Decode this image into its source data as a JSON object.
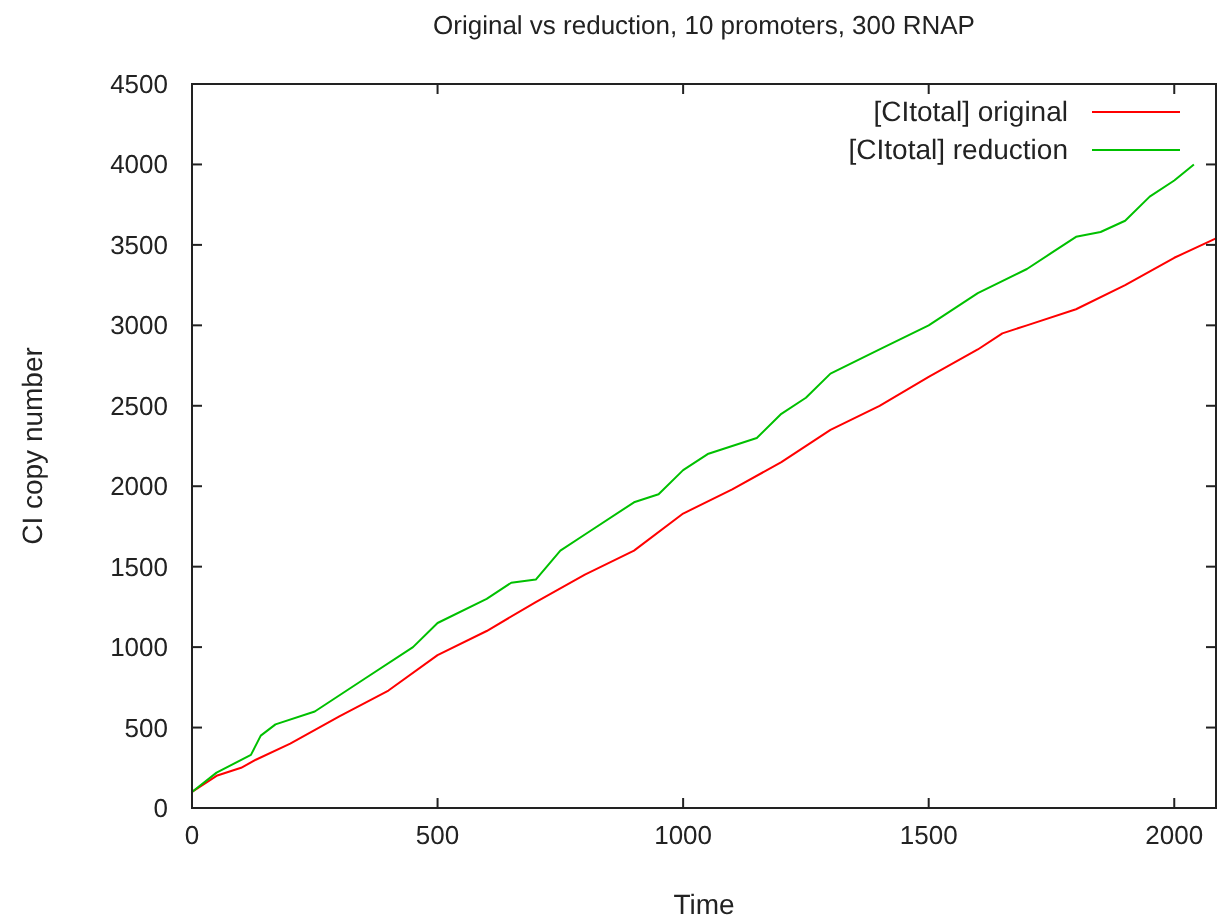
{
  "chart_data": {
    "type": "line",
    "title": "Original vs reduction, 10 promoters, 300 RNAP",
    "xlabel": "Time",
    "ylabel": "CI copy number",
    "xlim": [
      0,
      2085
    ],
    "xticks": [
      0,
      500,
      1000,
      1500,
      2000
    ],
    "ylim": [
      0,
      4500
    ],
    "yticks": [
      0,
      500,
      1000,
      1500,
      2000,
      2500,
      3000,
      3500,
      4000,
      4500
    ],
    "grid": false,
    "legend": "top right",
    "line_style": "solid",
    "series": [
      {
        "name": "[CItotal] original",
        "color": "#ff0000",
        "x": [
          0,
          50,
          100,
          130,
          200,
          300,
          400,
          500,
          600,
          700,
          800,
          900,
          1000,
          1100,
          1200,
          1300,
          1400,
          1500,
          1600,
          1650,
          1700,
          1800,
          1900,
          2000,
          2085
        ],
        "values": [
          100,
          200,
          250,
          300,
          400,
          570,
          730,
          950,
          1100,
          1280,
          1450,
          1600,
          1830,
          1980,
          2150,
          2350,
          2500,
          2680,
          2850,
          2950,
          3000,
          3100,
          3250,
          3420,
          3540
        ]
      },
      {
        "name": "[CItotal] reduction",
        "color": "#00c000",
        "x": [
          0,
          50,
          120,
          140,
          170,
          250,
          350,
          450,
          500,
          600,
          650,
          700,
          750,
          800,
          900,
          950,
          1000,
          1050,
          1150,
          1200,
          1250,
          1300,
          1400,
          1500,
          1600,
          1700,
          1750,
          1800,
          1850,
          1900,
          1950,
          2000,
          2040
        ],
        "values": [
          100,
          220,
          330,
          450,
          520,
          600,
          800,
          1000,
          1150,
          1300,
          1400,
          1420,
          1600,
          1700,
          1900,
          1950,
          2100,
          2200,
          2300,
          2450,
          2550,
          2700,
          2850,
          3000,
          3200,
          3350,
          3450,
          3550,
          3580,
          3650,
          3800,
          3900,
          4000
        ]
      }
    ]
  }
}
